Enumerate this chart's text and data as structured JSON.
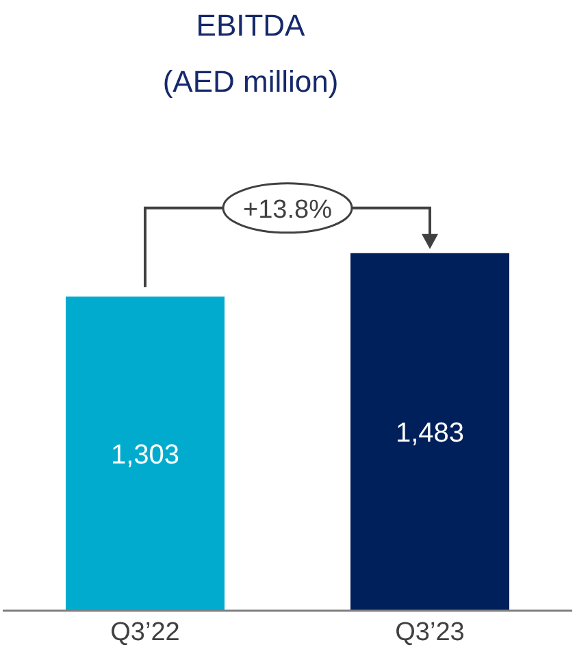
{
  "chart_data": {
    "type": "bar",
    "title": "EBITDA",
    "subtitle": "(AED million)",
    "categories": [
      "Q3’22",
      "Q3’23"
    ],
    "values": [
      1303,
      1483
    ],
    "colors": [
      "#00abcd",
      "#00205b"
    ],
    "value_labels": [
      "1,303",
      "1,483"
    ],
    "annotations": [
      "+13.8%"
    ]
  }
}
